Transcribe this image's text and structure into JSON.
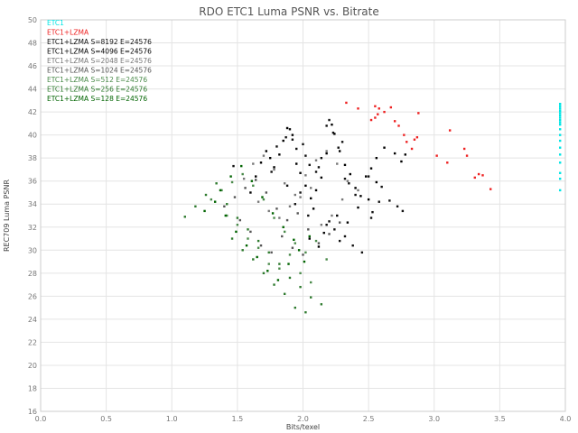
{
  "chart_data": {
    "type": "scatter",
    "title": "RDO ETC1 Luma PSNR vs. Bitrate",
    "xlabel": "Bits/texel",
    "ylabel": "REC709 Luma PSNR",
    "xlim": [
      0,
      4
    ],
    "ylim": [
      16,
      50
    ],
    "xticks": [
      "0.0",
      "0.5",
      "1.0",
      "1.5",
      "2.0",
      "2.5",
      "3.0",
      "3.5",
      "4.0"
    ],
    "yticks": [
      "16",
      "18",
      "20",
      "22",
      "24",
      "26",
      "28",
      "30",
      "32",
      "34",
      "36",
      "38",
      "40",
      "42",
      "44",
      "46",
      "48",
      "50"
    ],
    "grid": true,
    "legend_position": "top-left",
    "series": [
      {
        "name": "ETC1",
        "color": "#00e5e5",
        "x": [
          3.96,
          3.96,
          3.96,
          3.96,
          3.96,
          3.96,
          3.96,
          3.96,
          3.96,
          3.96,
          3.96,
          3.96,
          3.96,
          3.96,
          3.96,
          3.96,
          3.96,
          3.96,
          3.96
        ],
        "y": [
          42.7,
          42.5,
          42.3,
          42.1,
          41.9,
          41.7,
          41.5,
          41.3,
          41.1,
          40.9,
          40.5,
          40.0,
          39.5,
          38.9,
          38.3,
          37.6,
          36.7,
          36.2,
          35.2
        ]
      },
      {
        "name": "ETC1+LZMA",
        "color": "#ee2222",
        "x": [
          2.33,
          2.42,
          2.55,
          2.58,
          2.62,
          2.67,
          2.57,
          2.55,
          2.52,
          2.7,
          2.73,
          2.77,
          2.79,
          2.83,
          2.85,
          2.87,
          2.88,
          3.02,
          3.1,
          3.12,
          3.23,
          3.25,
          3.31,
          3.34,
          3.37,
          3.43
        ],
        "y": [
          42.8,
          42.3,
          42.5,
          42.3,
          42.0,
          42.4,
          41.8,
          41.5,
          41.3,
          41.2,
          40.8,
          40.0,
          39.4,
          38.8,
          39.6,
          39.8,
          41.9,
          38.2,
          37.6,
          40.4,
          38.8,
          38.2,
          36.3,
          36.6,
          36.5,
          35.3
        ]
      },
      {
        "name": "ETC1+LZMA S=8192 E=24576",
        "color": "#111111",
        "x": [
          1.47,
          1.76,
          1.8,
          1.87,
          1.9,
          1.92,
          1.95,
          2.0,
          2.02,
          2.05,
          2.1,
          2.12,
          2.14,
          2.18,
          2.2,
          2.23,
          2.27,
          2.3,
          2.32,
          2.35,
          2.4,
          2.5,
          2.53,
          2.58,
          2.6,
          2.66,
          2.72,
          2.76,
          2.2,
          2.24,
          2.28,
          2.32,
          2.38,
          2.45,
          2.52,
          2.18,
          2.04,
          1.98,
          1.94,
          1.88
        ],
        "y": [
          37.3,
          36.8,
          39.0,
          39.8,
          40.5,
          39.6,
          38.8,
          39.2,
          38.2,
          37.4,
          36.8,
          37.2,
          38.0,
          40.8,
          41.3,
          40.2,
          38.9,
          39.4,
          36.2,
          35.8,
          34.8,
          36.4,
          33.3,
          34.2,
          35.5,
          34.3,
          33.8,
          33.4,
          32.5,
          31.8,
          30.8,
          31.2,
          30.4,
          29.8,
          32.8,
          32.2,
          33.0,
          35.0,
          34.0,
          35.6
        ]
      },
      {
        "name": "ETC1+LZMA S=4096 E=24576",
        "color": "#000000",
        "x": [
          1.6,
          1.64,
          1.68,
          1.72,
          1.75,
          1.78,
          1.82,
          1.85,
          1.88,
          1.92,
          1.95,
          1.98,
          2.02,
          2.06,
          2.08,
          2.1,
          2.14,
          2.18,
          2.22,
          2.24,
          2.28,
          2.32,
          2.36,
          2.4,
          2.44,
          2.48,
          2.52,
          2.56,
          2.62,
          2.7,
          2.75,
          2.78,
          2.05,
          2.12,
          2.16,
          2.26,
          2.34,
          2.42,
          2.5,
          2.56
        ],
        "y": [
          35.0,
          36.4,
          37.6,
          38.6,
          38.0,
          37.2,
          38.3,
          39.5,
          40.6,
          40.0,
          37.5,
          36.7,
          35.6,
          34.5,
          33.6,
          35.2,
          36.3,
          38.4,
          40.9,
          40.1,
          38.6,
          37.4,
          36.6,
          35.4,
          34.7,
          36.4,
          37.1,
          38.0,
          38.9,
          38.4,
          37.7,
          38.3,
          31.0,
          30.3,
          31.5,
          33.0,
          32.4,
          33.7,
          34.4,
          35.9
        ]
      },
      {
        "name": "ETC1+LZMA S=2048 E=24576",
        "color": "#777777",
        "x": [
          1.55,
          1.62,
          1.7,
          1.78,
          1.86,
          1.94,
          2.02,
          2.1,
          2.18,
          2.26,
          2.34,
          2.42,
          1.66,
          1.74,
          1.82,
          1.9,
          1.98,
          2.06,
          2.14,
          2.22,
          2.3
        ],
        "y": [
          36.2,
          37.5,
          38.2,
          37.0,
          35.8,
          34.8,
          36.5,
          37.8,
          38.6,
          37.5,
          36.0,
          35.2,
          34.2,
          33.4,
          32.8,
          33.8,
          34.6,
          35.4,
          32.2,
          33.0,
          34.4
        ]
      },
      {
        "name": "ETC1+LZMA S=1024 E=24576",
        "color": "#555555",
        "x": [
          1.4,
          1.48,
          1.56,
          1.64,
          1.72,
          1.8,
          1.88,
          1.96,
          2.04,
          2.12,
          2.2,
          2.28,
          1.52,
          1.6,
          1.68,
          1.76,
          1.84,
          1.92,
          2.0
        ],
        "y": [
          33.8,
          34.6,
          35.4,
          36.1,
          35.0,
          33.6,
          32.6,
          33.2,
          31.8,
          30.6,
          31.4,
          32.4,
          32.6,
          31.6,
          30.4,
          29.8,
          31.2,
          30.2,
          29.6
        ]
      },
      {
        "name": "ETC1+LZMA S=512 E=24576",
        "color": "#4a8a4a",
        "x": [
          1.3,
          1.38,
          1.46,
          1.54,
          1.62,
          1.7,
          1.78,
          1.86,
          1.94,
          2.02,
          2.1,
          2.18,
          1.42,
          1.5,
          1.58,
          1.66,
          1.74,
          1.82,
          1.9,
          1.98,
          2.06
        ],
        "y": [
          34.4,
          35.2,
          35.9,
          36.6,
          35.6,
          34.4,
          32.8,
          31.6,
          30.6,
          29.8,
          30.8,
          29.2,
          33.0,
          32.2,
          31.0,
          30.2,
          28.8,
          28.4,
          29.6,
          28.0,
          27.2
        ]
      },
      {
        "name": "ETC1+LZMA S=256 E=24576",
        "color": "#2e7a2e",
        "x": [
          1.1,
          1.18,
          1.26,
          1.34,
          1.42,
          1.5,
          1.58,
          1.66,
          1.74,
          1.82,
          1.9,
          1.98,
          2.06,
          2.14,
          1.46,
          1.54,
          1.62,
          1.7,
          1.78,
          1.86,
          1.94,
          2.02
        ],
        "y": [
          32.9,
          33.8,
          34.8,
          35.8,
          34.0,
          32.8,
          31.8,
          30.8,
          29.8,
          28.8,
          27.6,
          26.8,
          25.9,
          25.3,
          31.0,
          30.0,
          29.2,
          28.0,
          27.0,
          26.2,
          25.0,
          24.6
        ]
      },
      {
        "name": "ETC1+LZMA S=128 E=24576",
        "color": "#006400",
        "x": [
          1.25,
          1.33,
          1.41,
          1.49,
          1.57,
          1.65,
          1.73,
          1.81,
          1.89,
          1.97,
          2.05,
          1.37,
          1.45,
          1.53,
          1.61,
          1.69,
          1.77,
          1.85,
          1.93,
          2.01
        ],
        "y": [
          33.4,
          34.2,
          33.0,
          31.6,
          30.4,
          29.4,
          28.2,
          27.4,
          28.8,
          30.0,
          31.2,
          35.2,
          36.4,
          37.3,
          36.0,
          34.6,
          33.2,
          32.0,
          30.9,
          29.0
        ]
      }
    ]
  }
}
